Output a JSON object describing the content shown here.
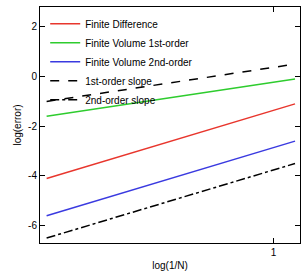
{
  "chart_data": {
    "type": "line",
    "x_label": "log(1/N)",
    "y_label": "log(error)",
    "xlim": [
      -0.41,
      1.16
    ],
    "xticks": [
      1
    ],
    "ylim": [
      -6.7,
      2.8
    ],
    "yticks": [
      2,
      0,
      -2,
      -4,
      -6
    ],
    "grid": false,
    "legend": "upper left",
    "series": [
      {
        "name": "Finite Difference",
        "color": "#e8362d",
        "line_style": "solid",
        "x": [
          -0.37,
          1.13
        ],
        "values": [
          -4.1,
          -1.1
        ]
      },
      {
        "name": "Finite Volume 1st-order",
        "color": "#2ecc2e",
        "line_style": "solid",
        "x": [
          -0.37,
          1.13
        ],
        "values": [
          -1.6,
          -0.1
        ]
      },
      {
        "name": "Finite Volume 2nd-order",
        "color": "#3a3ae0",
        "line_style": "solid",
        "x": [
          -0.37,
          1.13
        ],
        "values": [
          -5.6,
          -2.6
        ]
      },
      {
        "name": "1st-order slope",
        "color": "#000000",
        "line_style": "dash",
        "x": [
          -0.37,
          1.13
        ],
        "values": [
          -1.0,
          0.5
        ]
      },
      {
        "name": "2nd-order slope",
        "color": "#000000",
        "line_style": "dashdot",
        "x": [
          -0.37,
          1.13
        ],
        "values": [
          -6.5,
          -3.5
        ]
      }
    ]
  }
}
